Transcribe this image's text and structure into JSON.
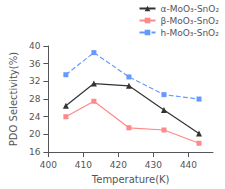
{
  "chart_data": {
    "type": "line",
    "x": [
      405,
      413,
      423,
      433,
      443
    ],
    "series": [
      {
        "name": "α-MoO₃-SnO₂",
        "color": "#333333",
        "marker": "triangle",
        "line_style": "solid",
        "values": [
          26.5,
          31.5,
          31.0,
          25.5,
          20.2
        ]
      },
      {
        "name": "β-MoO₃-SnO₂",
        "color": "#ff8888",
        "marker": "square",
        "line_style": "solid",
        "values": [
          24.0,
          27.5,
          21.5,
          21.0,
          18.0
        ]
      },
      {
        "name": "h-MoO₃-SnO₂",
        "color": "#6699ff",
        "marker": "square",
        "line_style": "dashed",
        "values": [
          33.5,
          38.5,
          33.0,
          29.0,
          28.0
        ]
      }
    ],
    "xlabel": "Temperature(K)",
    "ylabel": "PDO Selectivity(%)",
    "xlim": [
      400,
      447
    ],
    "ylim": [
      16,
      40
    ],
    "xticks": [
      400,
      410,
      420,
      430,
      440
    ],
    "yticks": [
      16,
      20,
      24,
      28,
      32,
      36,
      40
    ],
    "grid": false,
    "legend": "upper right"
  }
}
